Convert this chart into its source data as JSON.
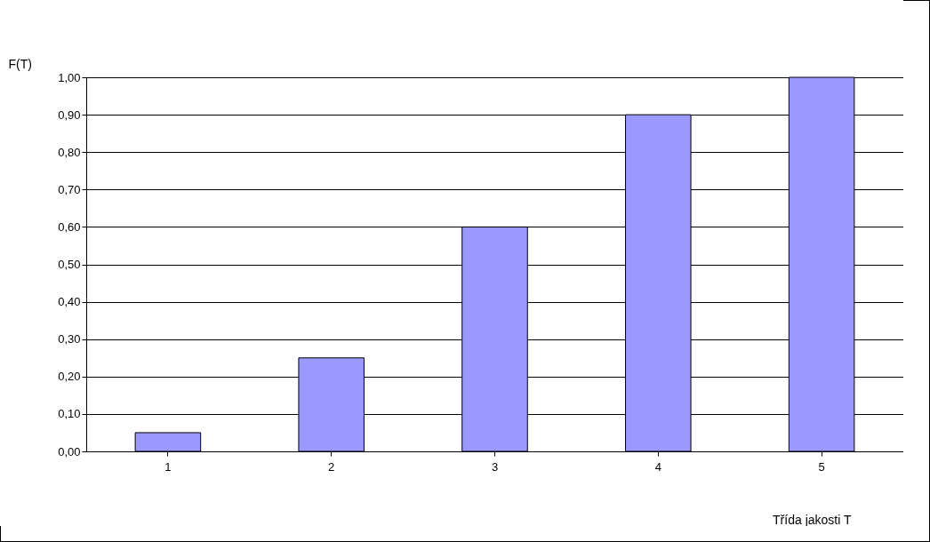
{
  "chart_data": {
    "type": "bar",
    "ylabel": "F(T)",
    "xlabel": "Třída jakosti T",
    "categories": [
      "1",
      "2",
      "3",
      "4",
      "5"
    ],
    "values": [
      0.05,
      0.25,
      0.6,
      0.9,
      1.0
    ],
    "color": "#9999ff",
    "ylim": [
      0,
      1
    ],
    "yticks": [
      {
        "value": 0,
        "label": "0,00"
      },
      {
        "value": 0.1,
        "label": "0,10"
      },
      {
        "value": 0.2,
        "label": "0,20"
      },
      {
        "value": 0.3,
        "label": "0,30"
      },
      {
        "value": 0.4,
        "label": "0,40"
      },
      {
        "value": 0.5,
        "label": "0,50"
      },
      {
        "value": 0.6,
        "label": "0,60"
      },
      {
        "value": 0.7,
        "label": "0,70"
      },
      {
        "value": 0.8,
        "label": "0,80"
      },
      {
        "value": 0.9,
        "label": "0,90"
      },
      {
        "value": 1,
        "label": "1,00"
      }
    ],
    "grid": "y"
  }
}
